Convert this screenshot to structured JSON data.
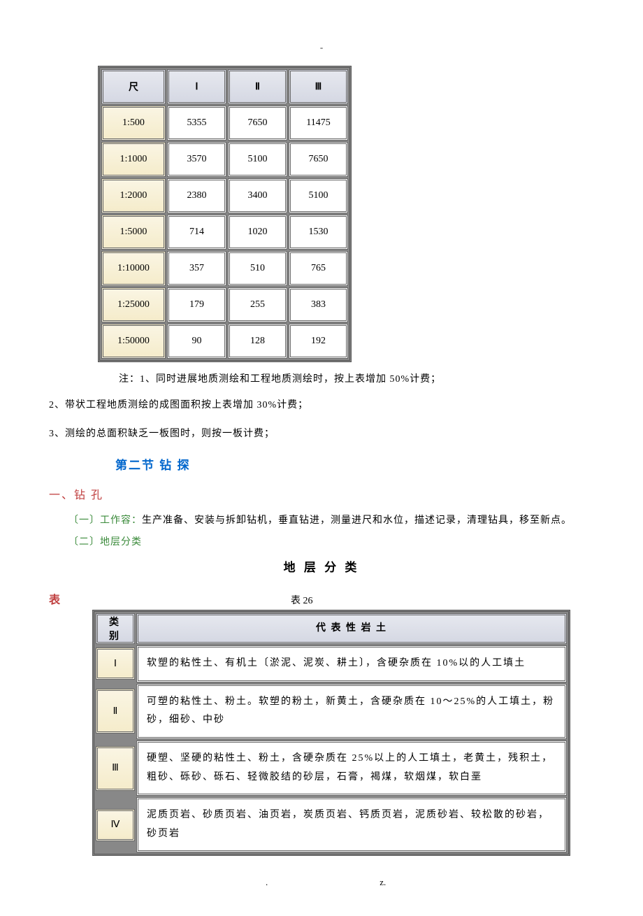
{
  "dash": "-",
  "table1": {
    "headers": [
      "尺",
      "Ⅰ",
      "Ⅱ",
      "Ⅲ"
    ],
    "rows": [
      {
        "scale": "1:500",
        "v": [
          "5355",
          "7650",
          "11475"
        ]
      },
      {
        "scale": "1:1000",
        "v": [
          "3570",
          "5100",
          "7650"
        ]
      },
      {
        "scale": "1:2000",
        "v": [
          "2380",
          "3400",
          "5100"
        ]
      },
      {
        "scale": "1:5000",
        "v": [
          "714",
          "1020",
          "1530"
        ]
      },
      {
        "scale": "1:10000",
        "v": [
          "357",
          "510",
          "765"
        ]
      },
      {
        "scale": "1:25000",
        "v": [
          "179",
          "255",
          "383"
        ]
      },
      {
        "scale": "1:50000",
        "v": [
          "90",
          "128",
          "192"
        ]
      }
    ],
    "header_bg_from": "#e6e8ef",
    "header_bg_to": "#d5d8e3",
    "rowhdr_bg_from": "#faf5e3",
    "rowhdr_bg_to": "#f5eccb",
    "cell_bg": "#ffffff",
    "border_color": "#666666"
  },
  "notes": {
    "n1": "注：1、同时进展地质测绘和工程地质测绘时，按上表增加 50%计费；",
    "n2": "2、带状工程地质测绘的成图面积按上表增加 30%计费；",
    "n3": "3、测绘的总面积缺乏一板图时，则按一板计费；"
  },
  "section2_title": "第二节 钻 探",
  "sub_drill": "一、钻 孔",
  "work_label": "〔一〕工作容：",
  "work_text": "生产准备、安装与拆卸钻机，垂直钻进，测量进尺和水位，描述记录，清理钻具，移至新点。",
  "stratum_label": "〔二〕地层分类",
  "table2_title": "地 层 分 类",
  "biao_label": "表",
  "biao_num": "表 26",
  "table2": {
    "hdr_cat": "类别",
    "hdr_desc": "代 表 性 岩 土",
    "rows": [
      {
        "cat": "Ⅰ",
        "desc": "软塑的粘性土、有机土〔淤泥、泥炭、耕土〕，含硬杂质在 10%以的人工填土"
      },
      {
        "cat": "Ⅱ",
        "desc": "可塑的粘性土、粉土。软塑的粉土，新黄土，含硬杂质在 10～25%的人工填土，粉砂，细砂、中砂"
      },
      {
        "cat": "Ⅲ",
        "desc": "硬塑、坚硬的粘性土、粉土，含硬杂质在 25%以上的人工填土，老黄土，残积土，粗砂、砾砂、砾石、轻微胶结的砂层，石膏，褐煤，软烟煤，软白垩"
      },
      {
        "cat": "Ⅳ",
        "desc": "泥质页岩、砂质页岩、油页岩，炭质页岩、钙质页岩，泥质砂岩、较松散的砂岩，砂页岩"
      }
    ]
  },
  "footer_dot": ".",
  "footer_z": "z.",
  "colors": {
    "blue": "#0066cc",
    "red": "#c04040",
    "green": "#3a8a3a"
  }
}
